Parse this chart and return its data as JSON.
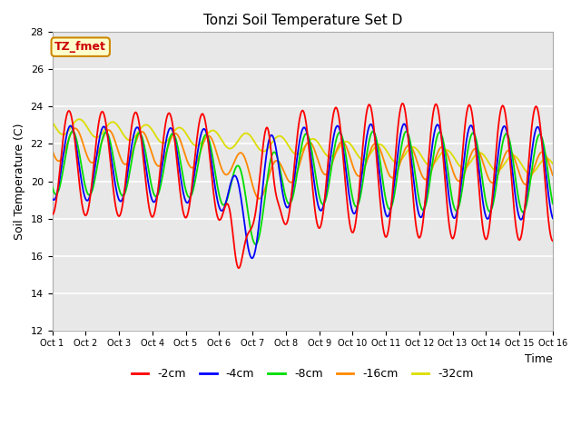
{
  "title": "Tonzi Soil Temperature Set D",
  "xlabel": "Time",
  "ylabel": "Soil Temperature (C)",
  "ylim": [
    12,
    28
  ],
  "yticks": [
    12,
    14,
    16,
    18,
    20,
    22,
    24,
    26,
    28
  ],
  "xlim": [
    0,
    15
  ],
  "xtick_labels": [
    "Oct 1",
    "Oct 2",
    "Oct 3",
    "Oct 4",
    "Oct 5",
    "Oct 6",
    "Oct 7",
    "Oct 8",
    "Oct 9",
    "Oct 10",
    "Oct 11",
    "Oct 12",
    "Oct 13",
    "Oct 14",
    "Oct 15",
    "Oct 16"
  ],
  "series_colors": {
    "-2cm": "#ff0000",
    "-4cm": "#0000ff",
    "-8cm": "#00dd00",
    "-16cm": "#ff8800",
    "-32cm": "#dddd00"
  },
  "legend_labels": [
    "-2cm",
    "-4cm",
    "-8cm",
    "-16cm",
    "-32cm"
  ],
  "annotation_text": "TZ_fmet",
  "annotation_color": "#cc0000",
  "annotation_bg": "#ffffcc",
  "annotation_border": "#cc8800",
  "plot_bg": "#e8e8e8",
  "fig_bg": "#ffffff",
  "grid_color": "#ffffff",
  "n_points": 600
}
